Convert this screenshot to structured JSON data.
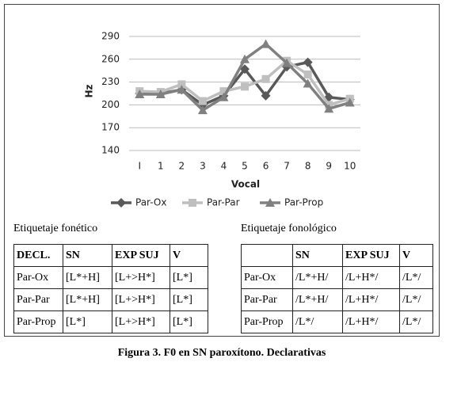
{
  "chart_data": {
    "type": "line",
    "categories": [
      "I",
      "1",
      "2",
      "3",
      "4",
      "5",
      "6",
      "7",
      "8",
      "9",
      "10"
    ],
    "series": [
      {
        "name": "Par-Ox",
        "color": "#595959",
        "marker": "diamond",
        "values": [
          215,
          215,
          220,
          200,
          212,
          247,
          212,
          250,
          256,
          210,
          207
        ]
      },
      {
        "name": "Par-Par",
        "color": "#bfbfbf",
        "marker": "square",
        "values": [
          218,
          217,
          227,
          205,
          218,
          224,
          234,
          258,
          240,
          200,
          208
        ]
      },
      {
        "name": "Par-Prop",
        "color": "#808080",
        "marker": "triangle",
        "values": [
          214,
          214,
          220,
          193,
          210,
          260,
          280,
          255,
          228,
          195,
          203
        ]
      }
    ],
    "ylim": [
      140,
      290
    ],
    "yticks": [
      140,
      170,
      200,
      230,
      260,
      290
    ],
    "ylabel": "Hz",
    "xlabel": "Vocal",
    "grid": true,
    "legend": "bottom"
  },
  "tables": [
    {
      "title": "Etiquetaje fonético",
      "header": [
        "DECL.",
        "SN",
        "EXP SUJ",
        "V"
      ],
      "rows": [
        [
          "Par-Ox",
          "[L*+H]",
          "[L+>H*]",
          "[L*]"
        ],
        [
          "Par-Par",
          "[L*+H]",
          "[L+>H*]",
          "[L*]"
        ],
        [
          "Par-Prop",
          "[L*]",
          "[L+>H*]",
          "[L*]"
        ]
      ]
    },
    {
      "title": "Etiquetaje fonológico",
      "header": [
        "SN",
        "EXP SUJ",
        "V"
      ],
      "rows": [
        [
          "Par-Ox",
          "/L*+H/",
          "/L+H*/",
          "/L*/"
        ],
        [
          "Par-Par",
          "/L*+H/",
          "/L+H*/",
          "/L*/"
        ],
        [
          "Par-Prop",
          "/L*/",
          "/L+H*/",
          "/L*/"
        ]
      ]
    }
  ],
  "caption": "Figura 3. F0 en SN paroxítono. Declarativas"
}
